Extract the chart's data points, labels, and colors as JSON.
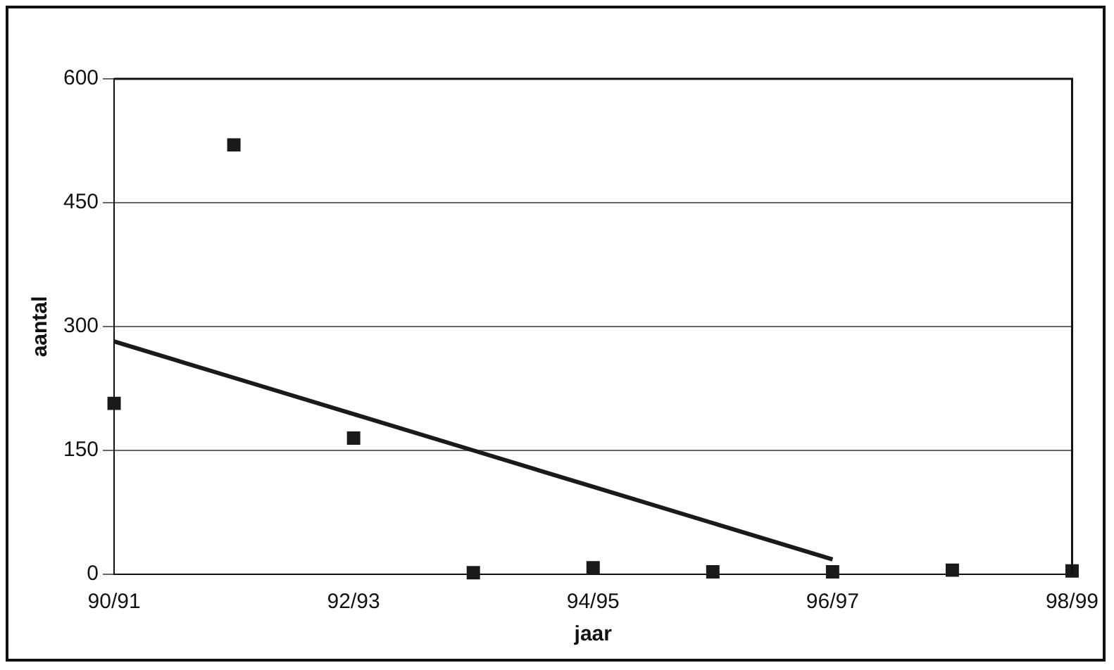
{
  "chart_data": {
    "type": "scatter",
    "xlabel": "jaar",
    "ylabel": "aantal",
    "categories": [
      "90/91",
      null,
      "92/93",
      null,
      "94/95",
      null,
      "96/97",
      null,
      "98/99"
    ],
    "series": [
      {
        "color": "#1a1a1a",
        "marker": "square",
        "values": [
          207,
          520,
          165,
          2,
          8,
          3,
          3,
          5,
          4
        ]
      },
      {
        "type": "line",
        "color": "#1a1a1a",
        "values": [
          282,
          238,
          194,
          150,
          106,
          62,
          18,
          null,
          null
        ]
      }
    ],
    "ylim": [
      0,
      600
    ],
    "yticks": [
      0,
      150,
      300,
      450,
      600
    ],
    "grid": "y",
    "legend": false
  }
}
